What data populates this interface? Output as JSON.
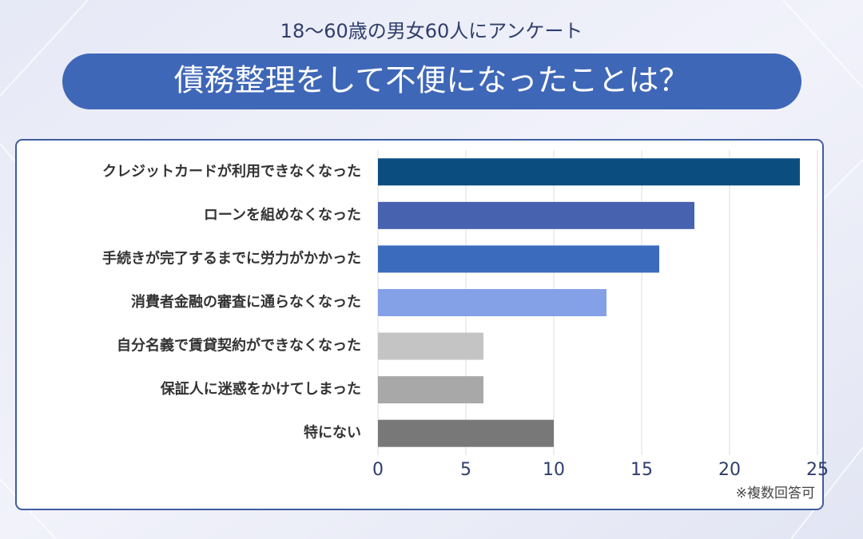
{
  "chart_data": {
    "type": "bar",
    "subtitle": "18〜60歳の男女60人にアンケート",
    "title": "債務整理をして不便になったことは？",
    "note": "※複数回答可",
    "categories": [
      "クレジットカードが利用できなくなった",
      "ローンを組めなくなった",
      "手続きが完了するまでに労力がかかった",
      "消費者金融の審査に通らなくなった",
      "自分名義で賃貸契約ができなくなった",
      "保証人に迷惑をかけてしまった",
      "特にない"
    ],
    "values": [
      24,
      18,
      16,
      13,
      6,
      6,
      10
    ],
    "colors": [
      "#0b4d7f",
      "#4762ae",
      "#3b6bbd",
      "#84a1e7",
      "#c4c4c4",
      "#a8a8a8",
      "#787878"
    ],
    "xlim": [
      0,
      25
    ],
    "xticks": [
      0,
      5,
      10,
      15,
      20,
      25
    ],
    "grid": true
  }
}
